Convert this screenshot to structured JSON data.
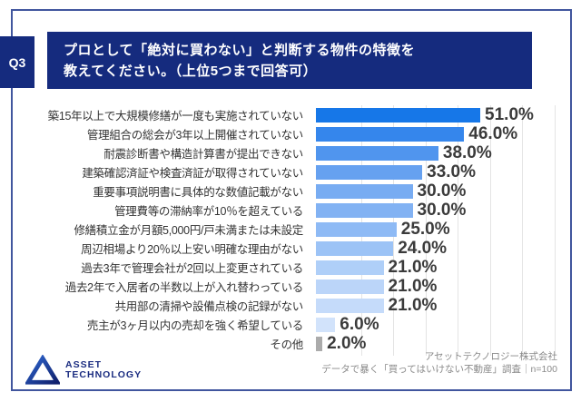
{
  "header": {
    "q_label": "Q3",
    "title_line1": "プロとして「絶対に買わない」と判断する物件の特徴を",
    "title_line2": "教えてください。（上位5つまで回答可）"
  },
  "chart_data": {
    "type": "bar",
    "orientation": "horizontal",
    "title": "プロとして「絶対に買わない」と判断する物件の特徴",
    "categories": [
      "築15年以上で大規模修繕が一度も実施されていない",
      "管理組合の総会が3年以上開催されていない",
      "耐震診断書や構造計算書が提出できない",
      "建築確認済証や検査済証が取得されていない",
      "重要事項説明書に具体的な数値記載がない",
      "管理費等の滞納率が10％を超えている",
      "修繕積立金が月額5,000円/戸未満または未設定",
      "周辺相場より20％以上安い明確な理由がない",
      "過去3年で管理会社が2回以上変更されている",
      "過去2年で入居者の半数以上が入れ替わっている",
      "共用部の清掃や設備点検の記録がない",
      "売主が3ヶ月以内の売却を強く希望している",
      "その他"
    ],
    "values": [
      51.0,
      46.0,
      38.0,
      33.0,
      30.0,
      30.0,
      25.0,
      24.0,
      21.0,
      21.0,
      21.0,
      6.0,
      2.0
    ],
    "value_labels": [
      "51.0%",
      "46.0%",
      "38.0%",
      "33.0%",
      "30.0%",
      "30.0%",
      "25.0%",
      "24.0%",
      "21.0%",
      "21.0%",
      "21.0%",
      "6.0%",
      "2.0%"
    ],
    "bar_colors": [
      "#1677E8",
      "#3586EC",
      "#5095EE",
      "#66A1F0",
      "#78ACF2",
      "#82B2F3",
      "#8EBAF5",
      "#9CC3F6",
      "#AFCFF8",
      "#BBD5F9",
      "#C5DBFA",
      "#D2E3FB",
      "#ABABAB"
    ],
    "xlim": [
      0,
      75
    ],
    "gridline_interval": 10,
    "grid": true,
    "gridline_color": "#E4E4E4",
    "legend": null
  },
  "footer": {
    "logo_line1": "ASSET",
    "logo_line2": "TECHNOLOGY",
    "source_line1": "アセットテクノロジー株式会社",
    "source_line2": "データで暴く「買ってはいけない不動産」調査｜n=100"
  },
  "colors": {
    "accent_navy": "#152b7e",
    "card_border": "#41569e",
    "label_text": "#333333",
    "value_text": "#3b3b3b",
    "source_text": "#8a8a8a",
    "other_bar_gray": "#ABABAB"
  }
}
